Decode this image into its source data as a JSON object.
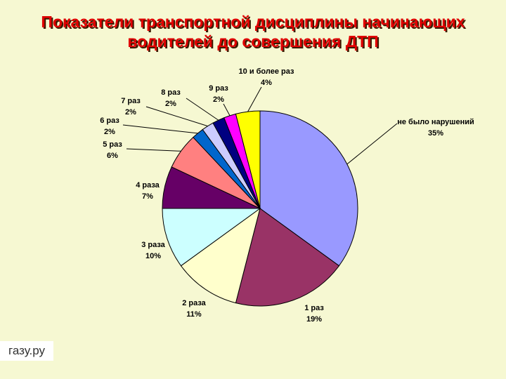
{
  "chart_data": {
    "type": "pie",
    "title": [
      "Показатели транспортной дисциплины начинающих",
      "водителей до совершения ДТП"
    ],
    "categories": [
      "не было нарушений",
      "1 раз",
      "2 раза",
      "3 раза",
      "4 раза",
      "5 раз",
      "6 раз",
      "7 раз",
      "8 раз",
      "9 раз",
      "10 и более раз"
    ],
    "values": [
      35,
      19,
      11,
      10,
      7,
      6,
      2,
      2,
      2,
      2,
      4
    ],
    "value_labels": [
      "35%",
      "19%",
      "11%",
      "10%",
      "7%",
      "6%",
      "2%",
      "2%",
      "2%",
      "2%",
      "4%"
    ],
    "colors": [
      "#9999ff",
      "#993366",
      "#ffffcc",
      "#ccffff",
      "#660066",
      "#ff8080",
      "#0066cc",
      "#ccccff",
      "#000080",
      "#ff00ff",
      "#ffff00"
    ]
  },
  "watermark": "газу.ру"
}
